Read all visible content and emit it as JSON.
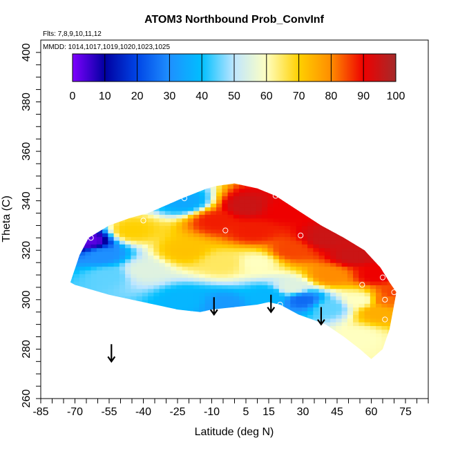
{
  "chart_data": {
    "type": "heatmap",
    "title": "ATOM3 Northbound Prob_ConvInf",
    "annotations": [
      "Flts: 7,8,9,10,11,12",
      "MMDD: 1014,1017,1019,1020,1023,1025"
    ],
    "xlabel": "Latitude (deg N)",
    "ylabel": "Theta (C)",
    "xlim": [
      -85,
      85
    ],
    "ylim": [
      260,
      405
    ],
    "x_ticks": [
      -85,
      -70,
      -55,
      -40,
      -25,
      -10,
      5,
      15,
      30,
      45,
      60,
      75
    ],
    "y_ticks": [
      260,
      280,
      300,
      320,
      340,
      360,
      380,
      400
    ],
    "colorbar": {
      "range": [
        0,
        100
      ],
      "ticks": [
        0,
        10,
        20,
        30,
        40,
        50,
        60,
        70,
        80,
        90,
        100
      ],
      "colors": [
        "#7f00ff",
        "#0000a0",
        "#0045e6",
        "#1e90ff",
        "#00bfff",
        "#bfe6ff",
        "#ffffc0",
        "#ffd000",
        "#ff8c00",
        "#ee0000",
        "#a52a2a"
      ]
    },
    "upper_boundary": [
      [
        -72,
        307
      ],
      [
        -68,
        318
      ],
      [
        -64,
        325
      ],
      [
        -55,
        330
      ],
      [
        -46,
        333
      ],
      [
        -38,
        335
      ],
      [
        -23,
        341
      ],
      [
        -12,
        345
      ],
      [
        -8,
        346
      ],
      [
        0,
        347
      ],
      [
        10,
        345
      ],
      [
        18,
        342
      ],
      [
        28,
        336
      ],
      [
        38,
        330
      ],
      [
        48,
        325
      ],
      [
        57,
        320
      ],
      [
        64,
        313
      ],
      [
        68,
        307
      ],
      [
        71,
        303
      ]
    ],
    "lower_boundary": [
      [
        -72,
        307
      ],
      [
        -70,
        306
      ],
      [
        -55,
        302
      ],
      [
        -40,
        299
      ],
      [
        -25,
        296
      ],
      [
        -15,
        295
      ],
      [
        -10,
        296
      ],
      [
        10,
        298
      ],
      [
        15,
        299
      ],
      [
        20,
        298
      ],
      [
        28,
        294
      ],
      [
        40,
        290
      ],
      [
        48,
        285
      ],
      [
        55,
        280
      ],
      [
        60,
        276
      ],
      [
        65,
        280
      ],
      [
        68,
        288
      ],
      [
        71,
        303
      ]
    ],
    "field_anchors": [
      {
        "lat": -64,
        "theta": 324,
        "value": 3
      },
      {
        "lat": -58,
        "theta": 318,
        "value": 30
      },
      {
        "lat": -55,
        "theta": 310,
        "value": 45
      },
      {
        "lat": -45,
        "theta": 328,
        "value": 70
      },
      {
        "lat": -40,
        "theta": 312,
        "value": 55
      },
      {
        "lat": -22,
        "theta": 340,
        "value": 35
      },
      {
        "lat": -22,
        "theta": 320,
        "value": 72
      },
      {
        "lat": -22,
        "theta": 300,
        "value": 38
      },
      {
        "lat": -8,
        "theta": 332,
        "value": 88
      },
      {
        "lat": -5,
        "theta": 315,
        "value": 65
      },
      {
        "lat": -5,
        "theta": 298,
        "value": 32
      },
      {
        "lat": 5,
        "theta": 338,
        "value": 95
      },
      {
        "lat": 8,
        "theta": 328,
        "value": 88
      },
      {
        "lat": 10,
        "theta": 315,
        "value": 60
      },
      {
        "lat": 15,
        "theta": 302,
        "value": 38
      },
      {
        "lat": 22,
        "theta": 336,
        "value": 90
      },
      {
        "lat": 25,
        "theta": 320,
        "value": 85
      },
      {
        "lat": 25,
        "theta": 305,
        "value": 55
      },
      {
        "lat": 30,
        "theta": 300,
        "value": 25
      },
      {
        "lat": 40,
        "theta": 325,
        "value": 95
      },
      {
        "lat": 42,
        "theta": 310,
        "value": 80
      },
      {
        "lat": 42,
        "theta": 297,
        "value": 45
      },
      {
        "lat": 52,
        "theta": 318,
        "value": 95
      },
      {
        "lat": 55,
        "theta": 300,
        "value": 60
      },
      {
        "lat": 55,
        "theta": 285,
        "value": 60
      },
      {
        "lat": 62,
        "theta": 310,
        "value": 90
      },
      {
        "lat": 63,
        "theta": 295,
        "value": 75
      },
      {
        "lat": 67,
        "theta": 300,
        "value": 82
      },
      {
        "lat": 70,
        "theta": 303,
        "value": 85
      }
    ],
    "markers": [
      {
        "lat": -63,
        "theta": 325
      },
      {
        "lat": -40,
        "theta": 332
      },
      {
        "lat": -22,
        "theta": 341
      },
      {
        "lat": -4,
        "theta": 328
      },
      {
        "lat": 18,
        "theta": 342
      },
      {
        "lat": 29,
        "theta": 326
      },
      {
        "lat": 43,
        "theta": 330
      },
      {
        "lat": 58,
        "theta": 321
      },
      {
        "lat": 56,
        "theta": 306
      },
      {
        "lat": 65,
        "theta": 309
      },
      {
        "lat": 66,
        "theta": 300
      },
      {
        "lat": 66,
        "theta": 292
      },
      {
        "lat": 70,
        "theta": 303
      },
      {
        "lat": 20,
        "theta": 298
      }
    ],
    "arrows": [
      {
        "lat": -54,
        "theta_top": 282,
        "theta_bottom": 275
      },
      {
        "lat": -9,
        "theta_top": 301,
        "theta_bottom": 294
      },
      {
        "lat": 16,
        "theta_top": 302,
        "theta_bottom": 295
      },
      {
        "lat": 38,
        "theta_top": 297,
        "theta_bottom": 290
      }
    ]
  }
}
